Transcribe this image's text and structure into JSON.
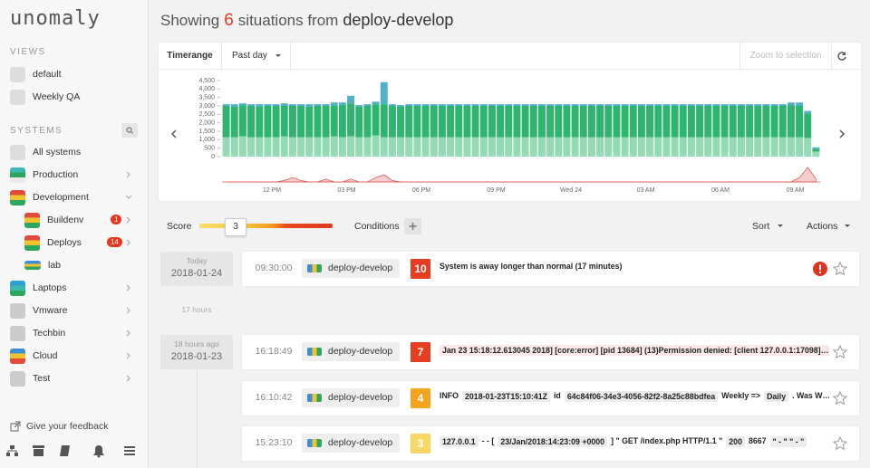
{
  "sidebar": {
    "logo": "unomaly",
    "views_heading": "VIEWS",
    "views": [
      "default",
      "Weekly QA"
    ],
    "systems_heading": "SYSTEMS",
    "systems": [
      {
        "name": "All systems"
      },
      {
        "name": "Production"
      },
      {
        "name": "Development"
      },
      {
        "name": "Buildenv",
        "badge": 1
      },
      {
        "name": "Deploys",
        "badge": 14
      },
      {
        "name": "lab"
      },
      {
        "name": "Laptops"
      },
      {
        "name": "Vmware"
      },
      {
        "name": "Techbin"
      },
      {
        "name": "Cloud"
      },
      {
        "name": "Test"
      }
    ],
    "feedback": "Give your feedback"
  },
  "header": {
    "prefix": "Showing",
    "count": 6,
    "middle": "situations from",
    "source": "deploy-develop"
  },
  "toolbar": {
    "timerange": "Timerange",
    "range": "Past day",
    "zoom": "Zoom to selection"
  },
  "chart_data": {
    "type": "bar",
    "stacked": true,
    "categories": [
      null,
      null,
      null,
      null,
      null,
      null,
      "12 PM",
      null,
      null,
      null,
      null,
      null,
      null,
      null,
      null,
      "03 PM",
      null,
      null,
      null,
      null,
      null,
      null,
      null,
      null,
      "06 PM",
      null,
      null,
      null,
      null,
      null,
      null,
      null,
      null,
      "09 PM",
      null,
      null,
      null,
      null,
      null,
      null,
      null,
      null,
      "Wed 24",
      null,
      null,
      null,
      null,
      null,
      null,
      null,
      null,
      "03 AM",
      null,
      null,
      null,
      null,
      null,
      null,
      null,
      null,
      "06 AM",
      null,
      null,
      null,
      null,
      null,
      null,
      null,
      null,
      "09 AM",
      null,
      null
    ],
    "ylim": [
      0,
      4500
    ],
    "yticks": [
      0,
      500,
      {
        "value": 1000,
        "label": "1,000"
      },
      {
        "value": 1500,
        "label": "1,500"
      },
      {
        "value": 2000,
        "label": "2,000"
      },
      {
        "value": 2500,
        "label": "2,500"
      },
      {
        "value": 3000,
        "label": "3,000"
      },
      {
        "value": 3500,
        "label": "3,500"
      },
      {
        "value": 4000,
        "label": "4,000"
      },
      {
        "value": 4500,
        "label": "4,500"
      }
    ],
    "y2lim": [
      0,
      10
    ],
    "series": [
      {
        "color": "#93dbb3",
        "values": [
          1150,
          1150,
          1200,
          1150,
          1150,
          1150,
          1150,
          1200,
          1150,
          1150,
          1150,
          1150,
          1150,
          1200,
          1150,
          1200,
          1150,
          1150,
          1250,
          1150,
          1150,
          1150,
          1150,
          1150,
          1150,
          1150,
          1150,
          1150,
          1150,
          1150,
          1150,
          1150,
          1150,
          1150,
          1150,
          1150,
          1150,
          1150,
          1150,
          1150,
          1150,
          1150,
          1150,
          1150,
          1150,
          1150,
          1150,
          1150,
          1150,
          1150,
          1150,
          1150,
          1150,
          1150,
          1150,
          1150,
          1150,
          1150,
          1150,
          1150,
          1150,
          1150,
          1150,
          1150,
          1150,
          1150,
          1150,
          1150,
          1150,
          1150,
          1100,
          300
        ]
      },
      {
        "color": "#2fb46e",
        "values": [
          1850,
          1800,
          1850,
          1850,
          1800,
          1850,
          1850,
          1800,
          1850,
          1850,
          1800,
          1850,
          1850,
          1800,
          1900,
          1950,
          1800,
          1850,
          1850,
          1950,
          1850,
          1800,
          1850,
          1850,
          1850,
          1850,
          1850,
          1850,
          1850,
          1850,
          1850,
          1850,
          1850,
          1850,
          1850,
          1850,
          1850,
          1850,
          1850,
          1850,
          1850,
          1850,
          1850,
          1850,
          1850,
          1850,
          1850,
          1850,
          1850,
          1850,
          1850,
          1850,
          1850,
          1850,
          1850,
          1850,
          1850,
          1850,
          1850,
          1850,
          1850,
          1850,
          1850,
          1850,
          1850,
          1850,
          1850,
          1850,
          1900,
          1850,
          1450,
          150
        ]
      },
      {
        "color": "#4fb0c6",
        "values": [
          100,
          150,
          100,
          100,
          150,
          100,
          100,
          150,
          100,
          100,
          150,
          100,
          100,
          200,
          150,
          450,
          100,
          100,
          150,
          1300,
          100,
          100,
          100,
          100,
          100,
          100,
          100,
          100,
          100,
          100,
          100,
          100,
          100,
          100,
          100,
          100,
          100,
          100,
          100,
          100,
          100,
          100,
          100,
          100,
          100,
          100,
          100,
          100,
          100,
          100,
          100,
          100,
          100,
          100,
          100,
          100,
          100,
          100,
          100,
          100,
          100,
          100,
          100,
          100,
          100,
          100,
          100,
          100,
          150,
          200,
          150,
          100
        ]
      },
      {
        "type": "area",
        "axis": "y2",
        "color": "#e05a5a",
        "values": [
          0,
          0,
          0,
          0,
          0,
          0,
          0,
          1,
          3,
          1,
          0,
          0,
          2,
          0,
          0,
          2,
          0,
          0,
          3,
          5,
          1,
          0,
          0,
          0,
          0,
          0,
          0,
          0,
          0,
          0,
          0,
          0,
          0,
          0,
          0,
          0,
          0,
          0,
          0,
          0,
          0,
          0,
          0,
          0,
          0,
          0,
          0,
          0,
          0,
          0,
          0,
          0,
          0,
          0,
          0,
          0,
          0,
          0,
          0,
          0,
          0,
          0,
          0,
          0,
          0,
          0,
          0,
          0,
          0,
          3,
          10,
          2
        ]
      }
    ]
  },
  "filters": {
    "score_label": "Score",
    "score_value": 3,
    "conditions": "Conditions",
    "sort": "Sort",
    "actions": "Actions"
  },
  "groups": [
    {
      "relative": "Today",
      "date": "2018-01-24",
      "situations": [
        {
          "time": "09:30:00",
          "system": "deploy-develop",
          "score": 10,
          "message": [
            "System is away longer than normal (17 minutes)"
          ]
        }
      ]
    },
    {
      "gap": "17 hours",
      "relative": "18 hours ago",
      "date": "2018-01-23",
      "situations": [
        {
          "time": "16:18:49",
          "system": "deploy-develop",
          "score": 7,
          "message": [
            "Jan 23 15:18:12.613045 2018] [core:error] [pid 13684] (13)Permission denied: [client 127.0.0.1:17098]…"
          ]
        },
        {
          "time": "16:10:42",
          "system": "deploy-develop",
          "score": 4,
          "message": [
            "INFO",
            "2018-01-23T15:10:41Z",
            "id",
            "64c84f06-34e3-4056-82f2-8a25c88bdfea",
            "Weekly =>",
            "Daily",
            ". Was W…"
          ]
        },
        {
          "time": "15:23:10",
          "system": "deploy-develop",
          "score": 3,
          "message": [
            "127.0.0.1",
            "- - [",
            "23/Jan/2018:14:23:09 +0000",
            "] \" GET /index.php HTTP/1.1 \"",
            "200",
            "8667",
            "\" - \" \" - \""
          ]
        }
      ]
    }
  ]
}
